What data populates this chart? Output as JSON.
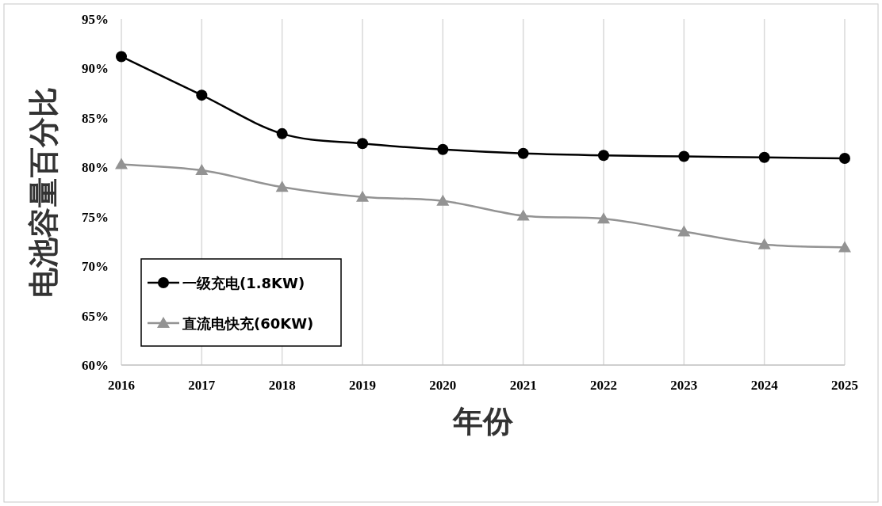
{
  "chart_data": {
    "type": "line",
    "xlabel": "年份",
    "ylabel": "电池容量百分比",
    "x": [
      2016,
      2017,
      2018,
      2019,
      2020,
      2021,
      2022,
      2023,
      2024,
      2025
    ],
    "series": [
      {
        "name": "一级充电(1.8KW)",
        "color": "#000000",
        "marker": "circle",
        "values": [
          91.2,
          87.3,
          83.4,
          82.4,
          81.8,
          81.4,
          81.2,
          81.1,
          81.0,
          80.9
        ]
      },
      {
        "name": "直流电快充(60KW)",
        "color": "#939393",
        "marker": "triangle",
        "values": [
          80.3,
          79.7,
          78.0,
          77.0,
          76.6,
          75.1,
          74.8,
          73.5,
          72.2,
          71.9
        ]
      }
    ],
    "xlim": [
      2016,
      2025
    ],
    "xticks": [
      2016,
      2017,
      2018,
      2019,
      2020,
      2021,
      2022,
      2023,
      2024,
      2025
    ],
    "ylim": [
      60,
      95
    ],
    "yticks": [
      {
        "value": 60,
        "label": "60%"
      },
      {
        "value": 65,
        "label": "65%"
      },
      {
        "value": 70,
        "label": "70%"
      },
      {
        "value": 75,
        "label": "75%"
      },
      {
        "value": 80,
        "label": "80%"
      },
      {
        "value": 85,
        "label": "85%"
      },
      {
        "value": 90,
        "label": "90%"
      },
      {
        "value": 95,
        "label": "95%"
      }
    ],
    "grid": "x",
    "legend": "bottom left",
    "line_style": "solid"
  }
}
